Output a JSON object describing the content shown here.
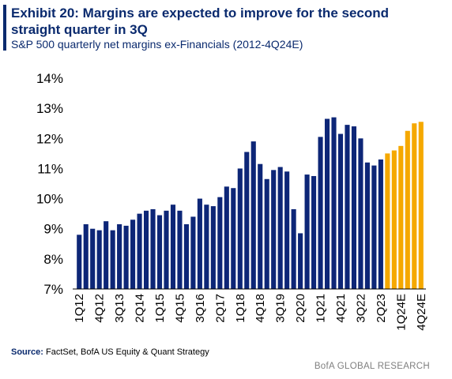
{
  "header": {
    "title": "Exhibit 20: Margins are expected to improve for the second straight quarter in 3Q",
    "subtitle": "S&P 500 quarterly net margins ex-Financials (2012-4Q24E)"
  },
  "footer": {
    "source_label": "Source:",
    "source_text": "FactSet, BofA US Equity & Quant Strategy",
    "brand": "BofA GLOBAL RESEARCH"
  },
  "colors": {
    "actual": "#0d2677",
    "estimate": "#f5a800",
    "title": "#0a2a6e",
    "axis": "#000000"
  },
  "chart_data": {
    "type": "bar",
    "title": "",
    "xlabel": "",
    "ylabel": "",
    "ylim": [
      7,
      14
    ],
    "y_ticks": [
      "7%",
      "8%",
      "9%",
      "10%",
      "11%",
      "12%",
      "13%",
      "14%"
    ],
    "y_tick_values": [
      7,
      8,
      9,
      10,
      11,
      12,
      13,
      14
    ],
    "grid": false,
    "x_tick_labels": [
      "1Q12",
      "4Q12",
      "3Q13",
      "2Q14",
      "1Q15",
      "4Q15",
      "3Q16",
      "2Q17",
      "1Q18",
      "4Q18",
      "3Q19",
      "2Q20",
      "1Q21",
      "4Q21",
      "3Q22",
      "2Q23",
      "1Q24E",
      "4Q24E"
    ],
    "categories": [
      "1Q12",
      "2Q12",
      "3Q12",
      "4Q12",
      "1Q13",
      "2Q13",
      "3Q13",
      "4Q13",
      "1Q14",
      "2Q14",
      "3Q14",
      "4Q14",
      "1Q15",
      "2Q15",
      "3Q15",
      "4Q15",
      "1Q16",
      "2Q16",
      "3Q16",
      "4Q16",
      "1Q17",
      "2Q17",
      "3Q17",
      "4Q17",
      "1Q18",
      "2Q18",
      "3Q18",
      "4Q18",
      "1Q19",
      "2Q19",
      "3Q19",
      "4Q19",
      "1Q20",
      "2Q20",
      "3Q20",
      "4Q20",
      "1Q21",
      "2Q21",
      "3Q21",
      "4Q21",
      "1Q22",
      "2Q22",
      "3Q22",
      "4Q22",
      "1Q23",
      "2Q23",
      "3Q23",
      "4Q23",
      "1Q24E",
      "2Q24E",
      "3Q24E",
      "4Q24E"
    ],
    "values": [
      8.8,
      9.15,
      9.0,
      8.95,
      9.25,
      8.95,
      9.15,
      9.1,
      9.3,
      9.5,
      9.6,
      9.65,
      9.45,
      9.6,
      9.8,
      9.6,
      9.15,
      9.4,
      10.0,
      9.8,
      9.75,
      10.05,
      10.4,
      10.35,
      11.0,
      11.55,
      11.9,
      11.15,
      10.65,
      10.95,
      11.05,
      10.9,
      9.65,
      8.85,
      10.8,
      10.75,
      12.05,
      12.65,
      12.7,
      12.15,
      12.45,
      12.4,
      12.0,
      11.2,
      11.1,
      11.3,
      11.5,
      11.6,
      11.75,
      12.25,
      12.5,
      12.55
    ],
    "series": [
      {
        "name": "",
        "kind": "actual",
        "from_index": 0,
        "to_index": 45
      },
      {
        "name": "",
        "kind": "estimate",
        "from_index": 46,
        "to_index": 51
      }
    ]
  }
}
